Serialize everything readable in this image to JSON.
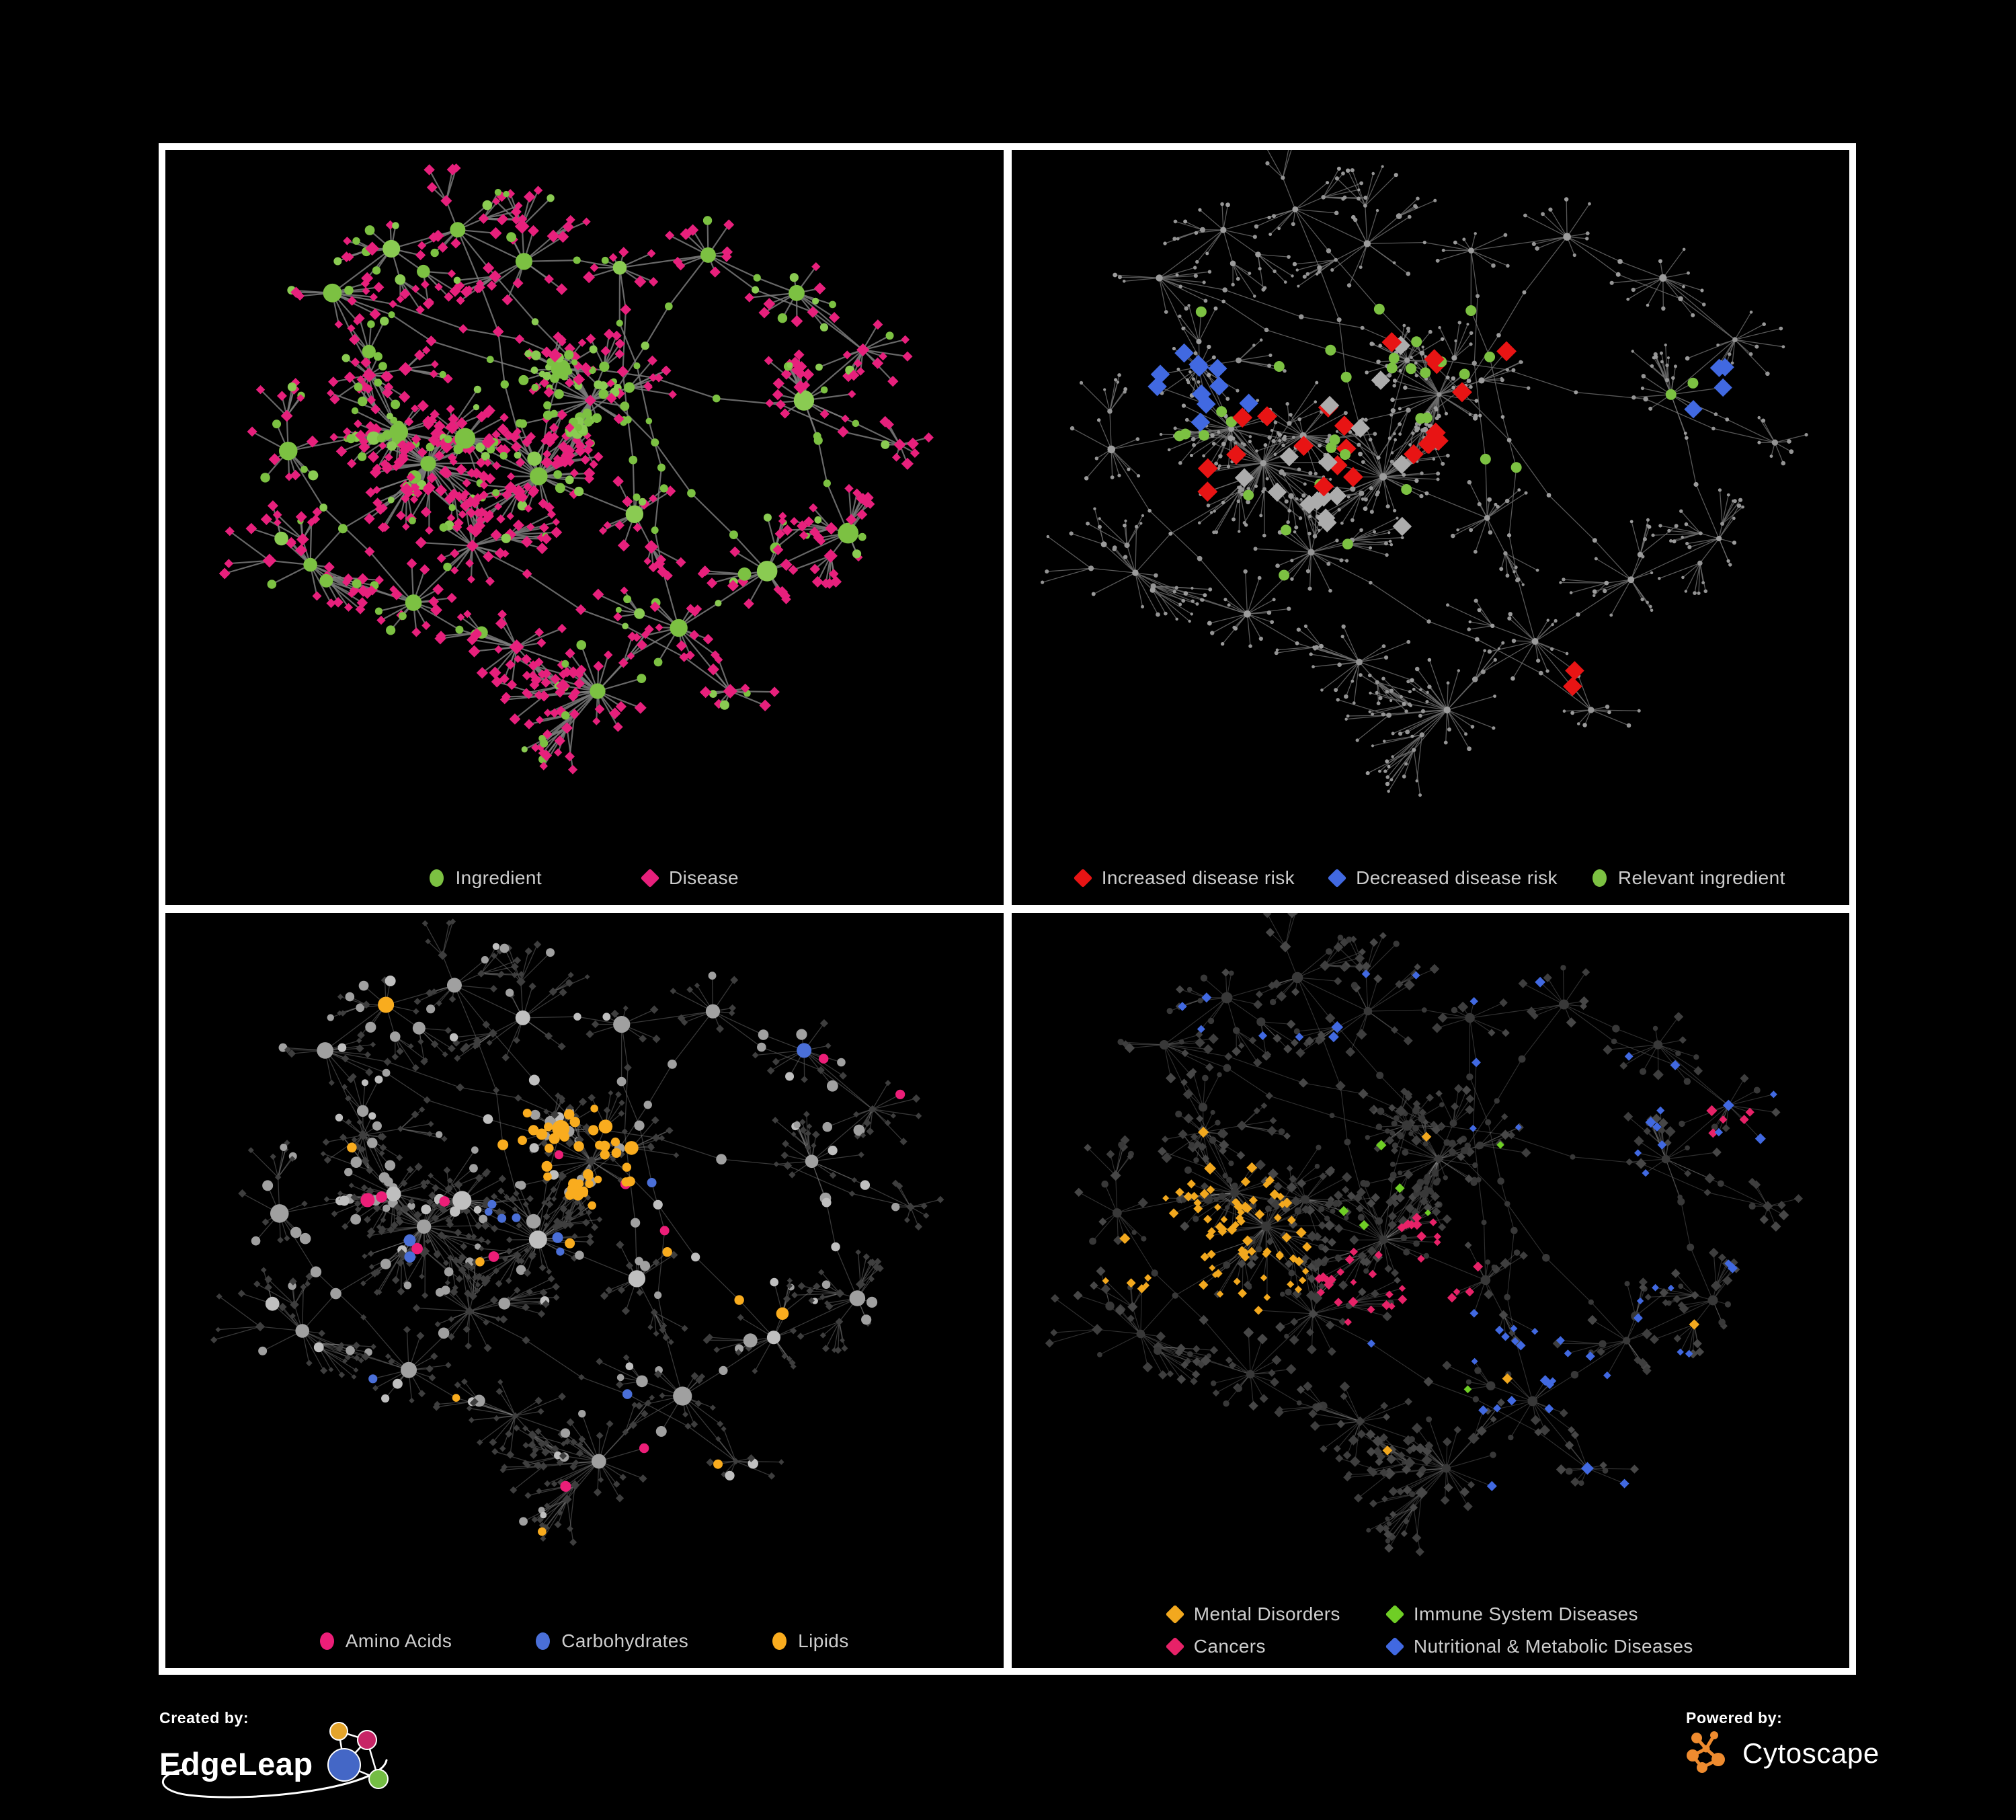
{
  "page": {
    "background": "#000000",
    "frame_color": "#ffffff",
    "panel_background": "#000000"
  },
  "footer": {
    "created_by_label": "Created by:",
    "created_by_name": "EdgeLeap",
    "powered_by_label": "Powered by:",
    "powered_by_name": "Cytoscape"
  },
  "chart_data": {
    "type": "network",
    "layout_hint": "four panels show the same ingredient-disease association network with different node colorings; procedurally regenerated from seeded anchors",
    "shared_topology": {
      "seed": 77,
      "anchors": [
        {
          "x": 0.29,
          "y": 0.44,
          "leaves": 46,
          "r": 0.055
        },
        {
          "x": 0.25,
          "y": 0.39,
          "leaves": 34,
          "r": 0.05
        },
        {
          "x": 0.34,
          "y": 0.4,
          "leaves": 30,
          "r": 0.046
        },
        {
          "x": 0.44,
          "y": 0.46,
          "leaves": 36,
          "r": 0.05
        },
        {
          "x": 0.51,
          "y": 0.34,
          "leaves": 40,
          "r": 0.045,
          "ib": 0.85
        },
        {
          "x": 0.47,
          "y": 0.29,
          "leaves": 24,
          "r": 0.04,
          "ib": 0.6
        },
        {
          "x": 0.16,
          "y": 0.17,
          "leaves": 12,
          "r": 0.05
        },
        {
          "x": 0.24,
          "y": 0.1,
          "leaves": 10,
          "r": 0.045
        },
        {
          "x": 0.33,
          "y": 0.07,
          "leaves": 10,
          "r": 0.045
        },
        {
          "x": 0.42,
          "y": 0.12,
          "leaves": 12,
          "r": 0.05
        },
        {
          "x": 0.55,
          "y": 0.13,
          "leaves": 8,
          "r": 0.04
        },
        {
          "x": 0.67,
          "y": 0.11,
          "leaves": 10,
          "r": 0.045
        },
        {
          "x": 0.79,
          "y": 0.17,
          "leaves": 12,
          "r": 0.05
        },
        {
          "x": 0.88,
          "y": 0.26,
          "leaves": 14,
          "r": 0.05
        },
        {
          "x": 0.8,
          "y": 0.34,
          "leaves": 16,
          "r": 0.05,
          "ib": 0.1
        },
        {
          "x": 0.93,
          "y": 0.41,
          "leaves": 8,
          "r": 0.035
        },
        {
          "x": 0.13,
          "y": 0.6,
          "leaves": 14,
          "r": 0.055
        },
        {
          "x": 0.1,
          "y": 0.42,
          "leaves": 10,
          "r": 0.045
        },
        {
          "x": 0.27,
          "y": 0.66,
          "leaves": 16,
          "r": 0.05
        },
        {
          "x": 0.41,
          "y": 0.73,
          "leaves": 18,
          "r": 0.05
        },
        {
          "x": 0.52,
          "y": 0.8,
          "leaves": 30,
          "r": 0.06
        },
        {
          "x": 0.63,
          "y": 0.7,
          "leaves": 14,
          "r": 0.05
        },
        {
          "x": 0.75,
          "y": 0.61,
          "leaves": 12,
          "r": 0.05
        },
        {
          "x": 0.7,
          "y": 0.8,
          "leaves": 10,
          "r": 0.045
        },
        {
          "x": 0.35,
          "y": 0.57,
          "leaves": 20,
          "r": 0.05
        },
        {
          "x": 0.57,
          "y": 0.52,
          "leaves": 14,
          "r": 0.045
        },
        {
          "x": 0.86,
          "y": 0.55,
          "leaves": 10,
          "r": 0.045
        },
        {
          "x": 0.21,
          "y": 0.3,
          "leaves": 18,
          "r": 0.045
        }
      ]
    },
    "panels": [
      {
        "id": "ingredient-disease",
        "legend": [
          {
            "label": "Ingredient",
            "color": "#7CC142",
            "shape": "circle"
          },
          {
            "label": "Disease",
            "color": "#E7207C",
            "shape": "diamond"
          }
        ],
        "spread": 0.94,
        "edge": {
          "color": "#7A7A7A",
          "width": 2.2,
          "opacity": 0.85
        },
        "default_i": {
          "shape": "circle",
          "color": "#7CC142",
          "sizes": {
            "hub": 12,
            "sub": 8.5,
            "chain": 5.5,
            "leaf": 5.8,
            "leaf2": 5.2
          }
        },
        "default_d": {
          "shape": "diamond",
          "color": "#E7207C",
          "sizes": {
            "hub": 7,
            "sub": 6.5,
            "chain": 5.2,
            "leaf": 5.4,
            "leaf2": 5.2
          }
        },
        "rules": [
          {
            "match": {
              "type": "i",
              "p": 0.3
            },
            "set": {
              "color": "#8ACB52"
            }
          }
        ]
      },
      {
        "id": "disease-risk",
        "legend": [
          {
            "label": "Increased disease risk",
            "color": "#E81414",
            "shape": "diamond"
          },
          {
            "label": "Decreased disease risk",
            "color": "#4169E1",
            "shape": "diamond"
          },
          {
            "label": "Relevant ingredient",
            "color": "#7CC142",
            "shape": "circle"
          }
        ],
        "spread": 1.02,
        "edge": {
          "color": "#6E6E6E",
          "width": 1.3,
          "opacity": 0.8
        },
        "default_i": {
          "shape": "circle",
          "color": "#9C9C9C",
          "sizes": {
            "hub": 4.5,
            "sub": 3.6,
            "chain": 3,
            "leaf": 2.7,
            "leaf2": 2.5
          }
        },
        "default_d": {
          "shape": "circle",
          "color": "#949494",
          "sizes": {
            "hub": 4.2,
            "sub": 3.4,
            "chain": 3,
            "leaf": 2.6,
            "leaf2": 2.4
          }
        },
        "rules": [
          {
            "match": {
              "type": "d",
              "near": {
                "x": 0.21,
                "y": 0.31,
                "r": 0.08
              },
              "p": 0.4
            },
            "set": {
              "shape": "diamond",
              "color": "#4169E1",
              "size": 11,
              "top": true
            }
          },
          {
            "match": {
              "type": "d",
              "near": {
                "x": 0.84,
                "y": 0.325,
                "r": 0.04
              },
              "p": 0.8
            },
            "set": {
              "shape": "diamond",
              "color": "#4169E1",
              "size": 10.5,
              "top": true
            }
          },
          {
            "match": {
              "type": "i",
              "near": {
                "x": 0.8,
                "y": 0.34,
                "r": 0.05
              },
              "p": 0.9
            },
            "set": {
              "color": "#7CC142",
              "size": 8,
              "top": true
            }
          },
          {
            "match": {
              "type": "d",
              "box": [
                0.21,
                0.2,
                0.66,
                0.54
              ],
              "p": 0.1
            },
            "set": {
              "shape": "diamond",
              "color": "#E81414",
              "size": 11.5,
              "top": true
            }
          },
          {
            "match": {
              "type": "d",
              "box": [
                0.6,
                0.6,
                0.8,
                0.85
              ],
              "p": 0.06
            },
            "set": {
              "shape": "diamond",
              "color": "#E81414",
              "size": 11,
              "top": true
            }
          },
          {
            "match": {
              "type": "d",
              "box": [
                0.2,
                0.2,
                0.68,
                0.56
              ],
              "p": 0.05
            },
            "set": {
              "shape": "diamond",
              "color": "#ACACAC",
              "size": 11,
              "top": true
            }
          },
          {
            "match": {
              "type": "i",
              "box": [
                0.16,
                0.2,
                0.64,
                0.62
              ],
              "p": 0.26
            },
            "set": {
              "color": "#7CC142",
              "size": 8,
              "top": true
            }
          }
        ]
      },
      {
        "id": "nutrient-classes",
        "legend": [
          {
            "label": "Amino Acids",
            "color": "#EC1E78",
            "shape": "circle"
          },
          {
            "label": "Carbohydrates",
            "color": "#4A6FD8",
            "shape": "circle"
          },
          {
            "label": "Lipids",
            "color": "#F9AC1E",
            "shape": "circle"
          }
        ],
        "spread": 0.97,
        "edge": {
          "color": "#8C8C8C",
          "width": 1.3,
          "opacity": 0.4
        },
        "default_i": {
          "shape": "circle",
          "color": "#A0A0A0",
          "sizes": {
            "hub": 11,
            "sub": 8.5,
            "chain": 6.5,
            "leaf": 6.5,
            "leaf2": 5.5
          }
        },
        "default_d": {
          "shape": "diamond",
          "color": "#3E3E3E",
          "sizes": {
            "hub": 4.5,
            "sub": 4.2,
            "chain": 3.8,
            "leaf": 3.7,
            "leaf2": 3.5
          }
        },
        "rules": [
          {
            "match": {
              "type": "i",
              "near": {
                "x": 0.47,
                "y": 0.325,
                "r": 0.105
              },
              "p": 0.72
            },
            "set": {
              "color": "#F9AC1E",
              "top": true
            }
          },
          {
            "match": {
              "type": "i",
              "near": {
                "x": 0.44,
                "y": 0.43,
                "r": 0.075
              },
              "p": 0.3
            },
            "set": {
              "color": "#4A6FD8",
              "top": true
            }
          },
          {
            "match": {
              "type": "i",
              "p": 0.085
            },
            "set": {
              "color": "#F9AC1E",
              "top": true
            }
          },
          {
            "match": {
              "type": "i",
              "p": 0.03
            },
            "set": {
              "color": "#4A6FD8",
              "top": true
            }
          },
          {
            "match": {
              "type": "i",
              "p": 0.075
            },
            "set": {
              "color": "#EC1E78",
              "top": true
            }
          },
          {
            "match": {
              "type": "i",
              "p": 0.3
            },
            "set": {
              "color": "#BFBFBF"
            }
          }
        ]
      },
      {
        "id": "disease-classes",
        "legend": [
          {
            "label": "Mental Disorders",
            "color": "#F2A81E",
            "shape": "diamond"
          },
          {
            "label": "Immune System Diseases",
            "color": "#6FCE25",
            "shape": "diamond"
          },
          {
            "label": "Cancers",
            "color": "#E72268",
            "shape": "diamond"
          },
          {
            "label": "Nutritional & Metabolic Diseases",
            "color": "#4169E1",
            "shape": "diamond"
          }
        ],
        "spread": 1.0,
        "edge": {
          "color": "#9A9A9A",
          "width": 1.15,
          "opacity": 0.3
        },
        "default_i": {
          "shape": "circle",
          "color": "#383838",
          "sizes": {
            "hub": 6.5,
            "sub": 5.5,
            "chain": 4.5,
            "leaf": 4.2,
            "leaf2": 4
          }
        },
        "default_d": {
          "shape": "diamond",
          "color": "#3E3E3E",
          "sizes": {
            "hub": 6,
            "sub": 5.4,
            "chain": 4.8,
            "leaf": 4.8,
            "leaf2": 4.4
          }
        },
        "rules": [
          {
            "match": {
              "type": "d",
              "near": {
                "x": 0.22,
                "y": 0.47,
                "r": 0.13
              },
              "p": 0.8
            },
            "set": {
              "color": "#F2A81E",
              "top": true
            }
          },
          {
            "match": {
              "type": "d",
              "near": {
                "x": 0.47,
                "y": 0.54,
                "r": 0.115
              },
              "p": 0.55
            },
            "set": {
              "color": "#E72268",
              "top": true
            }
          },
          {
            "match": {
              "type": "d",
              "near": {
                "x": 0.9,
                "y": 0.295,
                "r": 0.055
              },
              "p": 0.6
            },
            "set": {
              "color": "#E72268",
              "top": true
            }
          },
          {
            "match": {
              "type": "d",
              "near": {
                "x": 0.62,
                "y": 0.64,
                "r": 0.065
              },
              "p": 0.65
            },
            "set": {
              "color": "#4169E1",
              "top": true
            }
          },
          {
            "match": {
              "type": "d",
              "box": [
                0.55,
                0.0,
                1.0,
                1.0
              ],
              "p": 0.17
            },
            "set": {
              "color": "#4169E1",
              "top": true
            }
          },
          {
            "match": {
              "type": "d",
              "box": [
                0.05,
                0.0,
                0.6,
                0.16
              ],
              "p": 0.15
            },
            "set": {
              "color": "#4169E1",
              "top": true
            }
          },
          {
            "match": {
              "type": "d",
              "box": [
                0.3,
                0.25,
                0.75,
                0.72
              ],
              "p": 0.03
            },
            "set": {
              "color": "#6FCE25",
              "top": true
            }
          },
          {
            "match": {
              "type": "d",
              "p": 0.02
            },
            "set": {
              "color": "#F2A81E",
              "top": true
            }
          },
          {
            "match": {
              "type": "d",
              "p": 0.018
            },
            "set": {
              "color": "#4169E1",
              "top": true
            }
          },
          {
            "match": {
              "type": "d",
              "p": 0.35
            },
            "set": {
              "color": "#474747"
            }
          }
        ]
      }
    ]
  }
}
